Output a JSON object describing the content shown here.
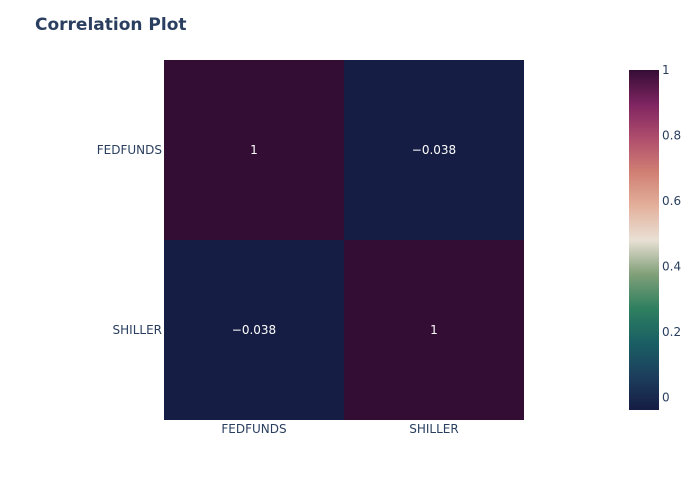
{
  "chart_data": {
    "type": "heatmap",
    "title": "Correlation Plot",
    "x_categories": [
      "FEDFUNDS",
      "SHILLER"
    ],
    "y_categories": [
      "FEDFUNDS",
      "SHILLER"
    ],
    "z": [
      [
        1,
        -0.038
      ],
      [
        -0.038,
        1
      ]
    ],
    "cell_text": [
      [
        "1",
        "−0.038"
      ],
      [
        "−0.038",
        "1"
      ]
    ],
    "colorscale": {
      "name": "curl",
      "stops": [
        [
          0.0,
          "#151d44"
        ],
        [
          0.1,
          "#1c3f5d"
        ],
        [
          0.2,
          "#1a6064"
        ],
        [
          0.3,
          "#2f8060"
        ],
        [
          0.4,
          "#81a079"
        ],
        [
          0.5,
          "#e9e0d5"
        ],
        [
          0.6,
          "#e3b09b"
        ],
        [
          0.7,
          "#d07f73"
        ],
        [
          0.8,
          "#af4d6d"
        ],
        [
          0.9,
          "#7e2460"
        ],
        [
          1.0,
          "#340d35"
        ]
      ],
      "zmin": -0.038,
      "zmax": 1
    },
    "colorbar": {
      "ticks": [
        0,
        0.2,
        0.4,
        0.6,
        0.8,
        1
      ],
      "tick_labels": [
        "0",
        "0.2",
        "0.4",
        "0.6",
        "0.8",
        "1"
      ]
    },
    "colors": {
      "title": "#2a3f5f",
      "axis_text": "#2a3f5f",
      "cell_text": "#ffffff"
    }
  }
}
